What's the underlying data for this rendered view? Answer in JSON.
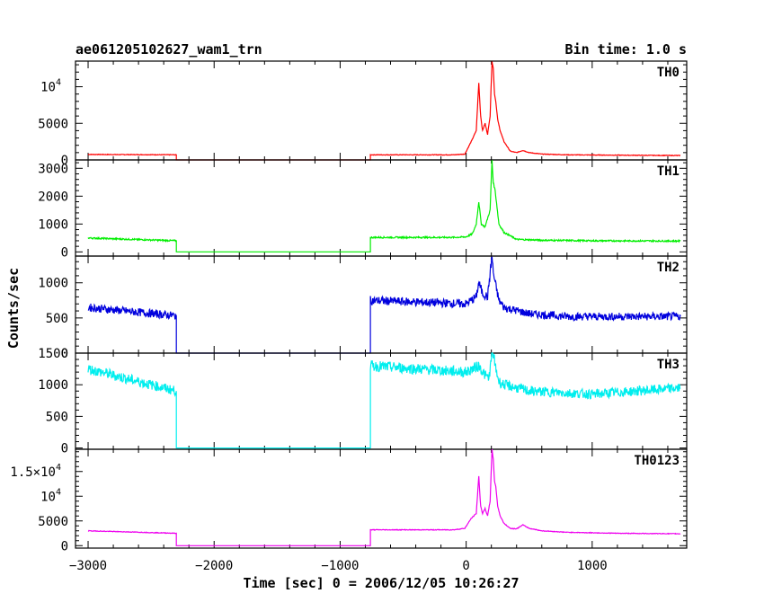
{
  "chart_data": {
    "type": "line",
    "title_left": "ae061205102627_wam1_trn",
    "title_right": "Bin time: 1.0 s",
    "xlabel": "Time [sec] 0 = 2006/12/05 10:26:27",
    "ylabel": "Counts/sec",
    "xlim": [
      -3100,
      1750
    ],
    "x_ticks": [
      -3000,
      -2000,
      -1000,
      0,
      1000
    ],
    "x_tick_labels": [
      "−3000",
      "−2000",
      "−1000",
      "0",
      "1000"
    ],
    "grid": false,
    "series": [
      {
        "name": "TH0",
        "color": "#ff0000",
        "ylim": [
          0,
          13500
        ],
        "y_ticks": [
          0,
          5000,
          10000
        ],
        "y_tick_labels": [
          {
            "text": "0"
          },
          {
            "text": "5000"
          },
          {
            "text": "10",
            "sup": "4"
          }
        ],
        "noise": 40,
        "x": [
          -3000,
          -2300,
          -2300,
          -760,
          -760,
          -100,
          -10,
          40,
          80,
          100,
          115,
          130,
          150,
          170,
          190,
          205,
          215,
          225,
          235,
          250,
          270,
          300,
          350,
          400,
          450,
          500,
          600,
          800,
          1200,
          1700
        ],
        "y": [
          750,
          700,
          0,
          0,
          700,
          700,
          800,
          2500,
          4000,
          10500,
          6000,
          4000,
          5000,
          3500,
          6000,
          13500,
          12500,
          9000,
          8000,
          5500,
          4000,
          2500,
          1200,
          1000,
          1300,
          1000,
          800,
          700,
          650,
          600
        ]
      },
      {
        "name": "TH1",
        "color": "#00ee00",
        "ylim": [
          -150,
          3300
        ],
        "y_ticks": [
          0,
          1000,
          2000,
          3000
        ],
        "y_tick_labels": [
          {
            "text": "0"
          },
          {
            "text": "1000"
          },
          {
            "text": "2000"
          },
          {
            "text": "3000"
          }
        ],
        "noise": 25,
        "x": [
          -3000,
          -2300,
          -2300,
          -760,
          -760,
          -100,
          0,
          50,
          80,
          100,
          120,
          150,
          190,
          205,
          215,
          230,
          260,
          300,
          400,
          600,
          1000,
          1700
        ],
        "y": [
          500,
          400,
          0,
          0,
          520,
          520,
          540,
          650,
          1000,
          1800,
          1000,
          900,
          1500,
          3300,
          2500,
          2200,
          1000,
          700,
          450,
          420,
          400,
          390
        ]
      },
      {
        "name": "TH2",
        "color": "#0000dd",
        "ylim": [
          0,
          1380
        ],
        "y_ticks": [
          0,
          500,
          1000
        ],
        "y_tick_labels": [
          {
            "text": "0"
          },
          {
            "text": "500"
          },
          {
            "text": "1000"
          }
        ],
        "noise": 45,
        "x": [
          -3000,
          -2300,
          -2300,
          -760,
          -760,
          -300,
          0,
          80,
          100,
          130,
          170,
          205,
          215,
          230,
          260,
          300,
          500,
          800,
          1700
        ],
        "y": [
          650,
          530,
          0,
          0,
          750,
          720,
          700,
          800,
          1000,
          850,
          800,
          1380,
          1150,
          1000,
          750,
          650,
          560,
          520,
          520
        ]
      },
      {
        "name": "TH3",
        "color": "#00eeee",
        "ylim": [
          -20,
          1500
        ],
        "y_ticks": [
          0,
          500,
          1000,
          1500
        ],
        "y_tick_labels": [
          {
            "text": "0"
          },
          {
            "text": "500"
          },
          {
            "text": "1000"
          },
          {
            "text": "1500"
          }
        ],
        "noise": 55,
        "x": [
          -3000,
          -2300,
          -2300,
          -760,
          -760,
          0,
          100,
          150,
          180,
          210,
          230,
          260,
          300,
          500,
          1000,
          1700
        ],
        "y": [
          1250,
          900,
          0,
          0,
          1300,
          1200,
          1300,
          1150,
          1100,
          1550,
          1300,
          1050,
          1000,
          900,
          850,
          950
        ]
      },
      {
        "name": "TH0123",
        "color": "#ee00ee",
        "ylim": [
          -500,
          19500
        ],
        "y_ticks": [
          0,
          5000,
          10000,
          15000
        ],
        "y_tick_labels": [
          {
            "text": "0"
          },
          {
            "text": "5000"
          },
          {
            "text": "10",
            "sup": "4"
          },
          {
            "text": "1.5×10",
            "sup": "4"
          }
        ],
        "noise": 60,
        "x": [
          -3000,
          -2300,
          -2300,
          -760,
          -760,
          -100,
          -10,
          40,
          80,
          100,
          115,
          130,
          150,
          170,
          190,
          205,
          215,
          225,
          235,
          250,
          270,
          300,
          350,
          400,
          450,
          500,
          600,
          800,
          1200,
          1700
        ],
        "y": [
          3000,
          2500,
          0,
          0,
          3200,
          3200,
          3500,
          5500,
          6500,
          14000,
          8000,
          6500,
          7500,
          6000,
          9000,
          19500,
          17500,
          13000,
          12000,
          8000,
          6000,
          4500,
          3500,
          3400,
          4200,
          3500,
          3000,
          2700,
          2500,
          2400
        ]
      }
    ]
  }
}
